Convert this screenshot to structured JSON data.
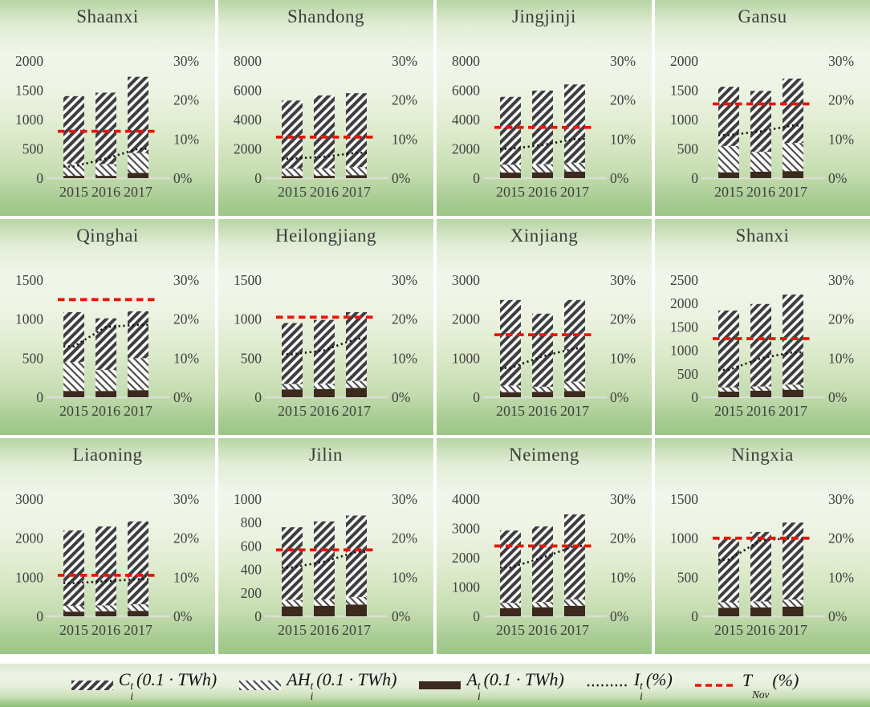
{
  "colors": {
    "hatch_dark": "#3e3e40",
    "hatch_light_dark": "#4a4a4c",
    "hatch_bg": "#fcfcfb",
    "a_bar": "#3b2a1d",
    "i_line": "#151515",
    "t_nov_line": "#e8150b",
    "axis_text": "#3f3f3f",
    "baseline": "#dadfd4",
    "panel_green": "#a3c98e"
  },
  "legend": {
    "items": [
      {
        "symbol": "C",
        "sup": "t",
        "sub": "i",
        "unit": "(0.1 · TWh)",
        "swatch": "hatch-heavy"
      },
      {
        "symbol": "AH",
        "sup": "t",
        "sub": "i",
        "unit": "(0.1 · TWh)",
        "swatch": "hatch-light"
      },
      {
        "symbol": "A",
        "sup": "t",
        "sub": "i",
        "unit": "(0.1 · TWh)",
        "swatch": "solid-dark"
      },
      {
        "symbol": "I",
        "sup": "t",
        "sub": "i",
        "unit": "(%)",
        "swatch": "dotted-line"
      },
      {
        "symbol": "T",
        "sup": "",
        "sub": "Nov",
        "unit": "(%)",
        "swatch": "red-dashed-line"
      }
    ]
  },
  "chart_data": [
    {
      "type": "bar",
      "title": "Shaanxi",
      "years": [
        "2015",
        "2016",
        "2017"
      ],
      "left_axis": {
        "max": 2000,
        "ticks": [
          0,
          500,
          1000,
          1500,
          2000
        ]
      },
      "right_axis": {
        "max": 30,
        "ticks": [
          "0%",
          "10%",
          "20%",
          "30%"
        ]
      },
      "series": {
        "C": [
          1150,
          1220,
          1300
        ],
        "AH": [
          210,
          200,
          340
        ],
        "A": [
          40,
          40,
          90
        ],
        "I_pct": [
          3,
          5,
          7.5
        ],
        "T_Nov_pct": 12
      }
    },
    {
      "type": "bar",
      "title": "Shandong",
      "years": [
        "2015",
        "2016",
        "2017"
      ],
      "left_axis": {
        "max": 8000,
        "ticks": [
          0,
          2000,
          4000,
          6000,
          8000
        ]
      },
      "right_axis": {
        "max": 30,
        "ticks": [
          "0%",
          "10%",
          "20%",
          "30%"
        ]
      },
      "series": {
        "C": [
          4650,
          4990,
          5050
        ],
        "AH": [
          500,
          500,
          550
        ],
        "A": [
          150,
          160,
          200
        ],
        "I_pct": [
          5,
          5.5,
          6.5
        ],
        "T_Nov_pct": 10.5
      }
    },
    {
      "type": "bar",
      "title": "Jingjinji",
      "years": [
        "2015",
        "2016",
        "2017"
      ],
      "left_axis": {
        "max": 8000,
        "ticks": [
          0,
          2000,
          4000,
          6000,
          8000
        ]
      },
      "right_axis": {
        "max": 30,
        "ticks": [
          "0%",
          "10%",
          "20%",
          "30%"
        ]
      },
      "series": {
        "C": [
          4620,
          5030,
          5350
        ],
        "AH": [
          550,
          550,
          600
        ],
        "A": [
          380,
          400,
          450
        ],
        "I_pct": [
          7.5,
          8.5,
          10
        ],
        "T_Nov_pct": 13
      }
    },
    {
      "type": "bar",
      "title": "Gansu",
      "years": [
        "2015",
        "2016",
        "2017"
      ],
      "left_axis": {
        "max": 2000,
        "ticks": [
          0,
          500,
          1000,
          1500,
          2000
        ]
      },
      "right_axis": {
        "max": 30,
        "ticks": [
          "0%",
          "10%",
          "20%",
          "30%"
        ]
      },
      "series": {
        "C": [
          1010,
          1040,
          1100
        ],
        "AH": [
          450,
          340,
          480
        ],
        "A": [
          100,
          110,
          120
        ],
        "I_pct": [
          11,
          12,
          13.5
        ],
        "T_Nov_pct": 19
      }
    },
    {
      "type": "bar",
      "title": "Qinghai",
      "years": [
        "2015",
        "2016",
        "2017"
      ],
      "left_axis": {
        "max": 1500,
        "ticks": [
          0,
          500,
          1000,
          1500
        ]
      },
      "right_axis": {
        "max": 30,
        "ticks": [
          "0%",
          "10%",
          "20%",
          "30%"
        ]
      },
      "series": {
        "C": [
          640,
          660,
          600
        ],
        "AH": [
          370,
          270,
          410
        ],
        "A": [
          80,
          80,
          90
        ],
        "I_pct": [
          13,
          18,
          18.5
        ],
        "T_Nov_pct": 25
      }
    },
    {
      "type": "bar",
      "title": "Heilongjiang",
      "years": [
        "2015",
        "2016",
        "2017"
      ],
      "left_axis": {
        "max": 1500,
        "ticks": [
          0,
          500,
          1000,
          1500
        ]
      },
      "right_axis": {
        "max": 30,
        "ticks": [
          "0%",
          "10%",
          "20%",
          "30%"
        ]
      },
      "series": {
        "C": [
          780,
          815,
          880
        ],
        "AH": [
          70,
          70,
          90
        ],
        "A": [
          100,
          105,
          120
        ],
        "I_pct": [
          11,
          12,
          15
        ],
        "T_Nov_pct": 20.5
      }
    },
    {
      "type": "bar",
      "title": "Xinjiang",
      "years": [
        "2015",
        "2016",
        "2017"
      ],
      "left_axis": {
        "max": 3000,
        "ticks": [
          0,
          1000,
          2000,
          3000
        ]
      },
      "right_axis": {
        "max": 30,
        "ticks": [
          "0%",
          "10%",
          "20%",
          "30%"
        ]
      },
      "series": {
        "C": [
          2190,
          1870,
          2090
        ],
        "AH": [
          170,
          130,
          240
        ],
        "A": [
          130,
          140,
          160
        ],
        "I_pct": [
          7.5,
          10.5,
          12.5
        ],
        "T_Nov_pct": 16
      }
    },
    {
      "type": "bar",
      "title": "Shanxi",
      "years": [
        "2015",
        "2016",
        "2017"
      ],
      "left_axis": {
        "max": 2500,
        "ticks": [
          0,
          500,
          1000,
          1500,
          2000,
          2500
        ]
      },
      "right_axis": {
        "max": 30,
        "ticks": [
          "0%",
          "10%",
          "20%",
          "30%"
        ]
      },
      "series": {
        "C": [
          1640,
          1760,
          1920
        ],
        "AH": [
          90,
          90,
          110
        ],
        "A": [
          120,
          140,
          160
        ],
        "I_pct": [
          7,
          10,
          11.5
        ],
        "T_Nov_pct": 15
      }
    },
    {
      "type": "bar",
      "title": "Liaoning",
      "years": [
        "2015",
        "2016",
        "2017"
      ],
      "left_axis": {
        "max": 3000,
        "ticks": [
          0,
          1000,
          2000,
          3000
        ]
      },
      "right_axis": {
        "max": 30,
        "ticks": [
          "0%",
          "10%",
          "20%",
          "30%"
        ]
      },
      "series": {
        "C": [
          1930,
          2020,
          2120
        ],
        "AH": [
          150,
          150,
          170
        ],
        "A": [
          120,
          130,
          140
        ],
        "I_pct": [
          8.5,
          9,
          9.5
        ],
        "T_Nov_pct": 10.5
      }
    },
    {
      "type": "bar",
      "title": "Jilin",
      "years": [
        "2015",
        "2016",
        "2017"
      ],
      "left_axis": {
        "max": 1000,
        "ticks": [
          0,
          200,
          400,
          600,
          800,
          1000
        ]
      },
      "right_axis": {
        "max": 30,
        "ticks": [
          "0%",
          "10%",
          "20%",
          "30%"
        ]
      },
      "series": {
        "C": [
          620,
          665,
          695
        ],
        "AH": [
          55,
          55,
          65
        ],
        "A": [
          85,
          90,
          100
        ],
        "I_pct": [
          12.5,
          14,
          16.5
        ],
        "T_Nov_pct": 17
      }
    },
    {
      "type": "bar",
      "title": "Neimeng",
      "years": [
        "2015",
        "2016",
        "2017"
      ],
      "left_axis": {
        "max": 4000,
        "ticks": [
          0,
          1000,
          2000,
          3000,
          4000
        ]
      },
      "right_axis": {
        "max": 30,
        "ticks": [
          "0%",
          "10%",
          "20%",
          "30%"
        ]
      },
      "series": {
        "C": [
          2470,
          2580,
          2900
        ],
        "AH": [
          180,
          180,
          220
        ],
        "A": [
          280,
          310,
          360
        ],
        "I_pct": [
          12.5,
          15,
          18
        ],
        "T_Nov_pct": 18
      }
    },
    {
      "type": "bar",
      "title": "Ningxia",
      "years": [
        "2015",
        "2016",
        "2017"
      ],
      "left_axis": {
        "max": 1500,
        "ticks": [
          0,
          500,
          1000,
          1500
        ]
      },
      "right_axis": {
        "max": 30,
        "ticks": [
          "0%",
          "10%",
          "20%",
          "30%"
        ]
      },
      "series": {
        "C": [
          810,
          890,
          985
        ],
        "AH": [
          70,
          75,
          90
        ],
        "A": [
          110,
          115,
          125
        ],
        "I_pct": [
          14.5,
          19.5,
          20
        ],
        "T_Nov_pct": 20
      }
    }
  ]
}
